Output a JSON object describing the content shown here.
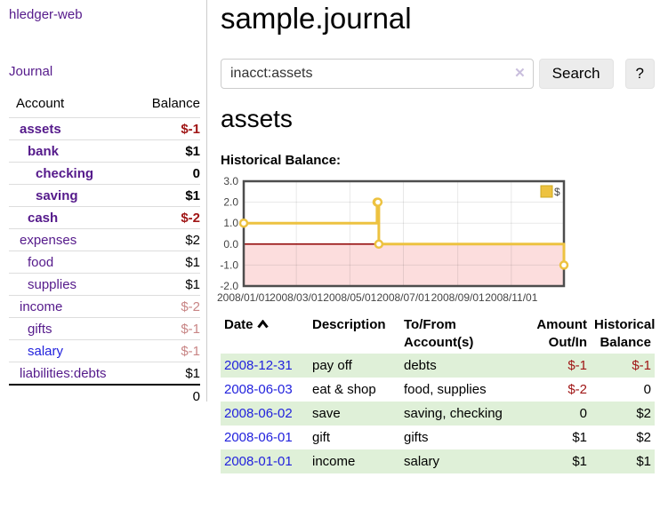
{
  "app": {
    "name": "hledger-web"
  },
  "sidebar": {
    "nav": {
      "journal_label": "Journal"
    },
    "headers": {
      "account": "Account",
      "balance": "Balance"
    },
    "accounts": [
      {
        "name": "assets",
        "balance": "$-1"
      },
      {
        "name": "bank",
        "balance": "$1"
      },
      {
        "name": "checking",
        "balance": "0"
      },
      {
        "name": "saving",
        "balance": "$1"
      },
      {
        "name": "cash",
        "balance": "$-2"
      },
      {
        "name": "expenses",
        "balance": "$2"
      },
      {
        "name": "food",
        "balance": "$1"
      },
      {
        "name": "supplies",
        "balance": "$1"
      },
      {
        "name": "income",
        "balance": "$-2"
      },
      {
        "name": "gifts",
        "balance": "$-1"
      },
      {
        "name": "salary",
        "balance": "$-1"
      },
      {
        "name": "liabilities:debts",
        "balance": "$1"
      }
    ],
    "total": "0"
  },
  "header": {
    "title": "sample.journal"
  },
  "search": {
    "value": "inacct:assets",
    "clear_icon": "✕",
    "button_label": "Search",
    "help_label": "?"
  },
  "account_page": {
    "title": "assets",
    "chart_label": "Historical Balance:"
  },
  "chart_data": {
    "type": "line",
    "step": true,
    "title": "Historical Balance:",
    "series": [
      {
        "name": "$",
        "color": "#edc240",
        "points": [
          [
            "2008-01-01",
            1
          ],
          [
            "2008-06-01",
            2
          ],
          [
            "2008-06-02",
            2
          ],
          [
            "2008-06-03",
            0
          ],
          [
            "2008-12-31",
            -1
          ]
        ]
      }
    ],
    "xlim": [
      "2008-01-01",
      "2008-12-31"
    ],
    "ylim": [
      -2,
      3
    ],
    "yticks": [
      3,
      2,
      1,
      0,
      -1,
      -2
    ],
    "xticks": [
      "2008/01/01",
      "2008/03/01",
      "2008/05/01",
      "2008/07/01",
      "2008/09/01",
      "2008/11/01"
    ],
    "legend_position": "top-right",
    "grid": true,
    "colors": {
      "negative_region": "#fcdddd",
      "zero_line": "#8e0000",
      "grid": "rgba(0,0,0,0.09)",
      "border": "#4d4d4d",
      "legend_border": "#cda820"
    }
  },
  "register": {
    "headers": {
      "date": "Date",
      "description": "Description",
      "accounts": "To/From Account(s)",
      "amount": "Amount Out/In",
      "balance": "Historical Balance"
    },
    "rows": [
      {
        "date": "2008-12-31",
        "description": "pay off",
        "accounts": "debts",
        "amount": "$-1",
        "balance": "$-1"
      },
      {
        "date": "2008-06-03",
        "description": "eat & shop",
        "accounts": "food, supplies",
        "amount": "$-2",
        "balance": "0"
      },
      {
        "date": "2008-06-02",
        "description": "save",
        "accounts": "saving, checking",
        "amount": "0",
        "balance": "$2"
      },
      {
        "date": "2008-06-01",
        "description": "gift",
        "accounts": "gifts",
        "amount": "$1",
        "balance": "$2"
      },
      {
        "date": "2008-01-01",
        "description": "income",
        "accounts": "salary",
        "amount": "$1",
        "balance": "$1"
      }
    ]
  }
}
